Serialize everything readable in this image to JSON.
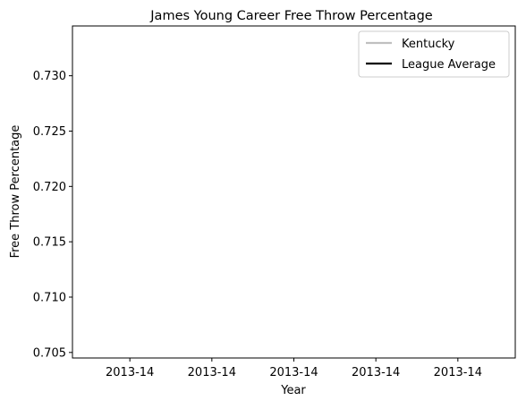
{
  "chart_data": {
    "type": "line",
    "title": "James Young  Career Free Throw Percentage",
    "xlabel": "Year",
    "ylabel": "Free Throw Percentage",
    "x_tick_labels": [
      "2013-14",
      "2013-14",
      "2013-14",
      "2013-14",
      "2013-14"
    ],
    "y_ticks": [
      0.705,
      0.71,
      0.715,
      0.72,
      0.725,
      0.73
    ],
    "y_tick_labels": [
      "0.705",
      "0.710",
      "0.715",
      "0.720",
      "0.725",
      "0.730"
    ],
    "ylim": [
      0.7045,
      0.7345
    ],
    "grid": false,
    "legend_position": "top-right",
    "series": [
      {
        "name": "Kentucky",
        "color": "#c0c0c0",
        "values": []
      },
      {
        "name": "League Average",
        "color": "#000000",
        "values": []
      }
    ]
  }
}
